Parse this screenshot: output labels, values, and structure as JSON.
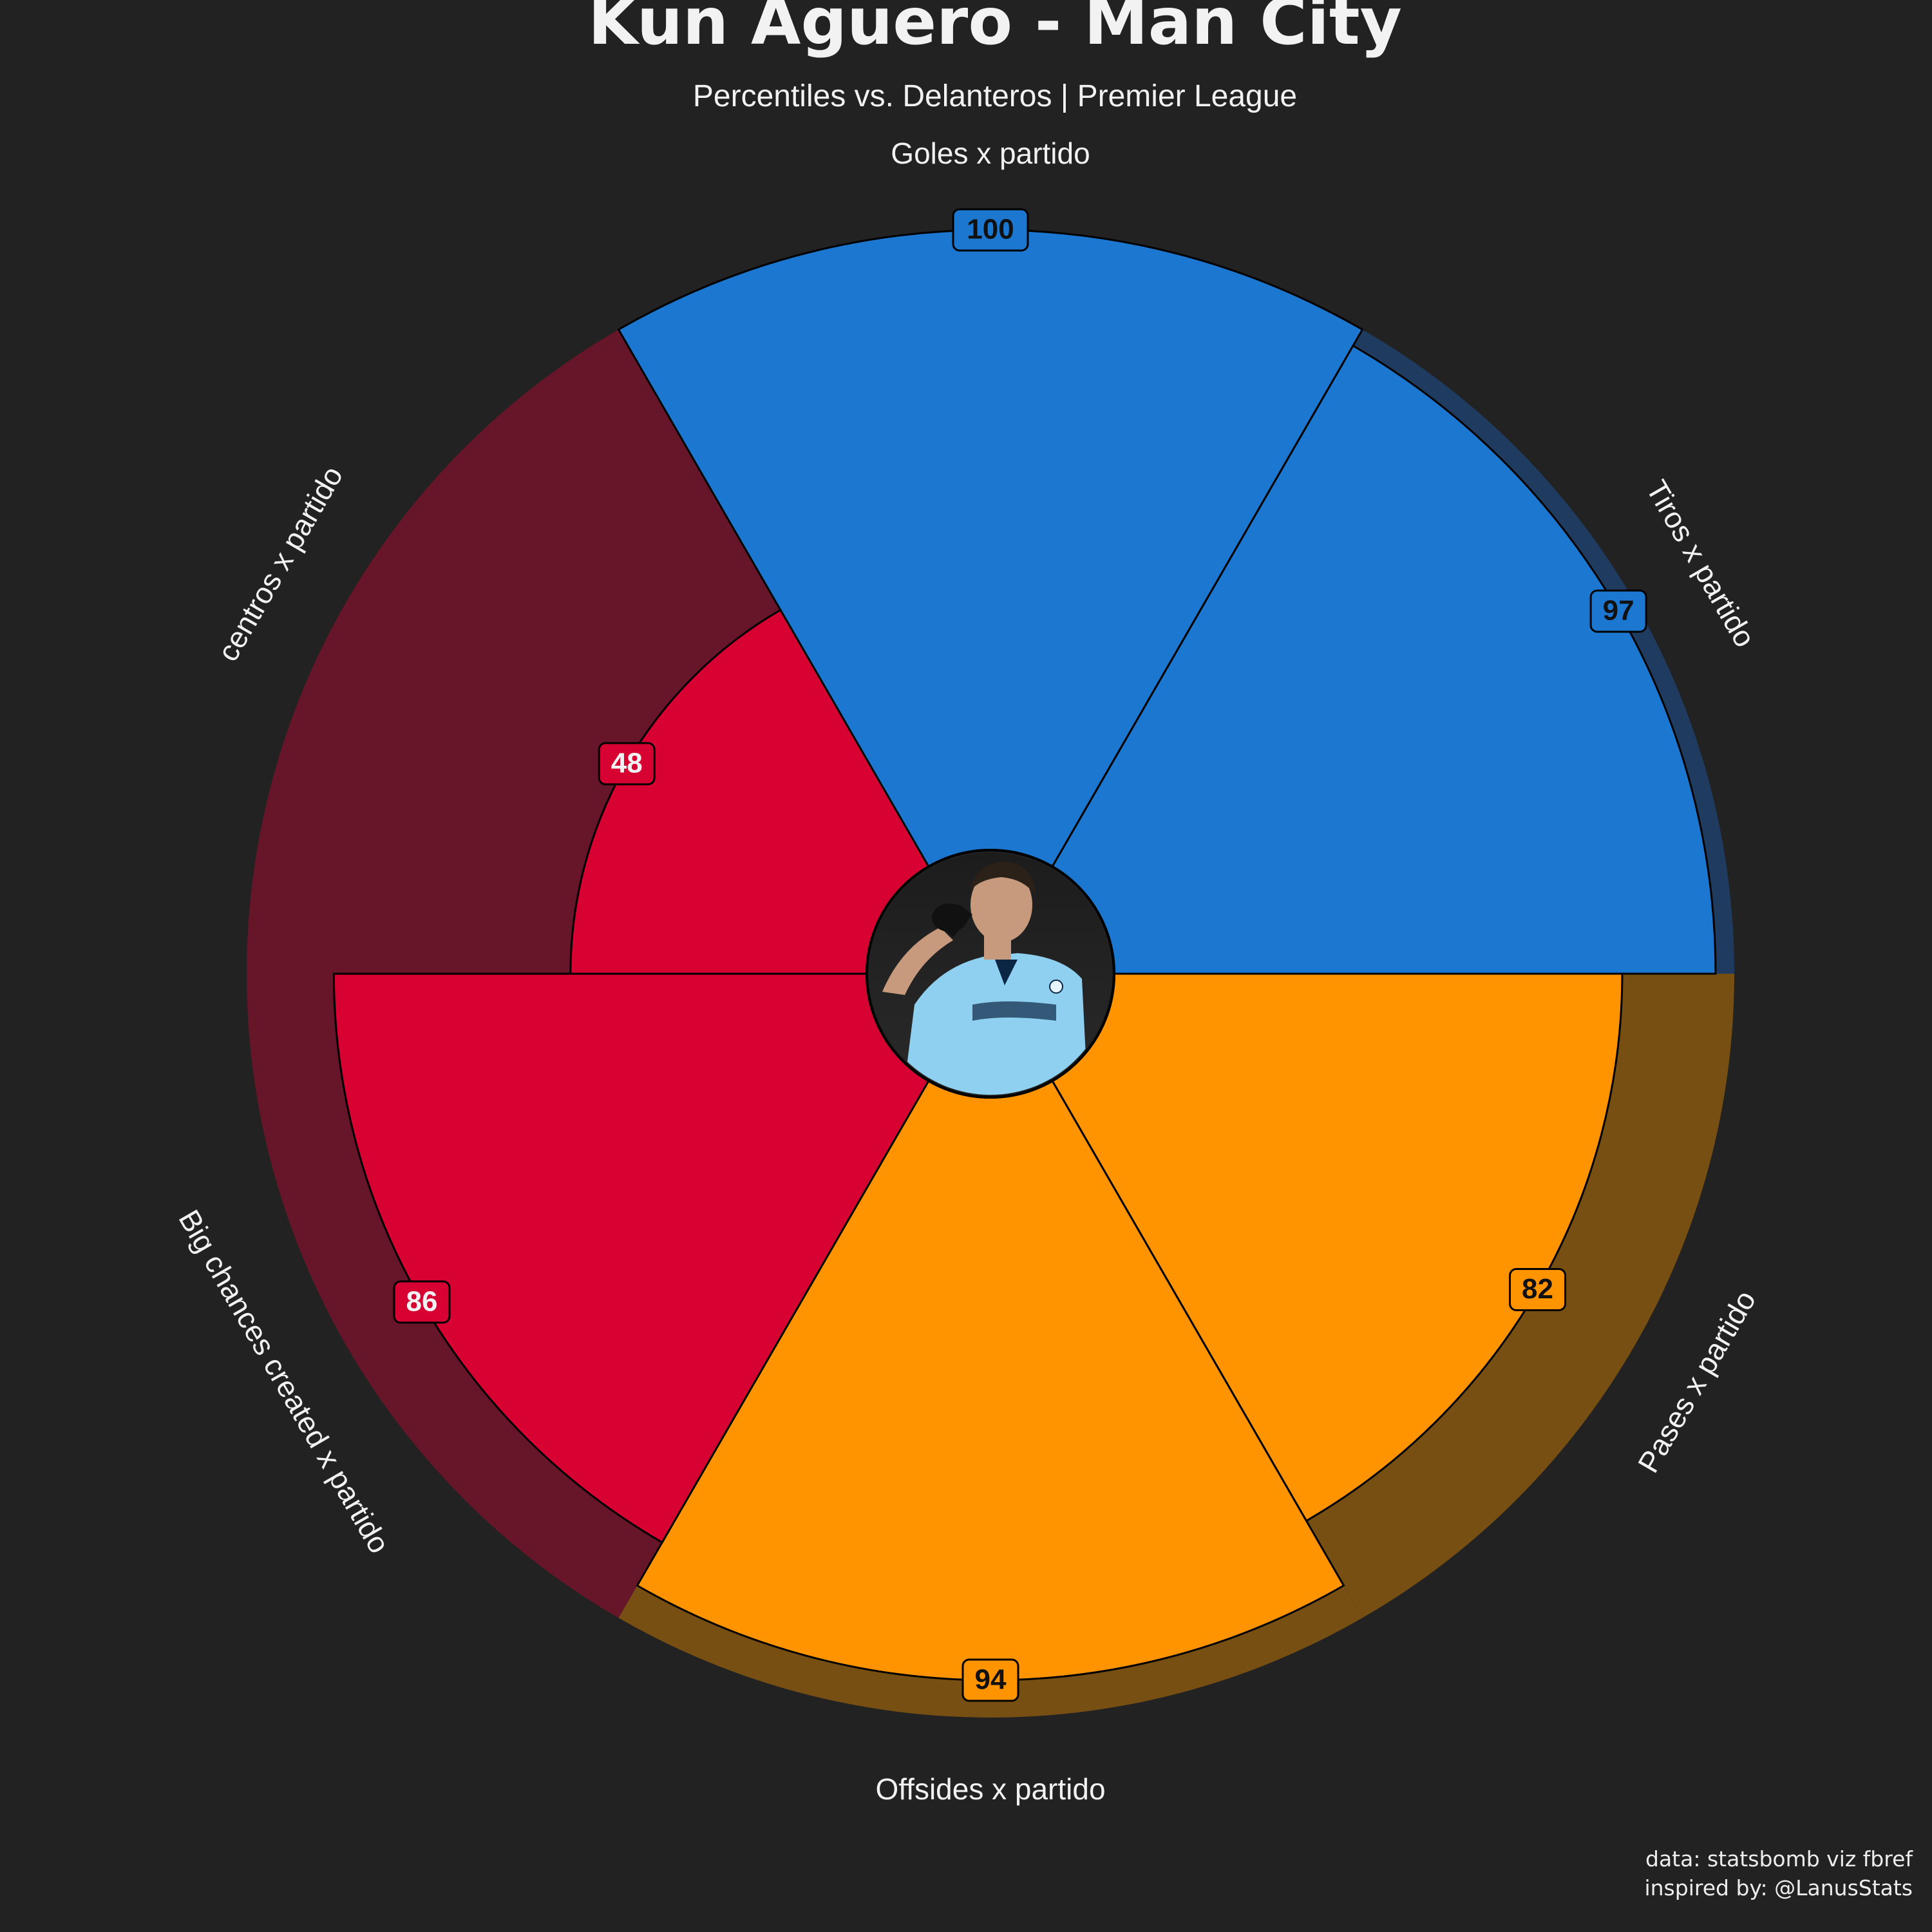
{
  "header": {
    "title": "Kun Aguero - Man City",
    "subtitle": "Percentiles vs. Delanteros | Premier League"
  },
  "footer": {
    "line1": "data: statsbomb viz fbref",
    "line2": "inspired by: @LanusStats"
  },
  "colors": {
    "background": "#222222",
    "attack": "#1B77D0",
    "attack_bg": "#1F3C60",
    "possession": "#FF9300",
    "possession_bg": "#774F13",
    "creation": "#D70232",
    "creation_bg": "#661628",
    "label_light": "#F2F2F2",
    "label_dark": "#111111"
  },
  "photo": {
    "icon": "player-photo",
    "alt": "player celebrating in sky-blue kit"
  },
  "chart_data": {
    "type": "polar-bar",
    "title": "Kun Aguero - Man City",
    "subtitle": "Percentiles vs. Delanteros | Premier League",
    "rlim": [
      0,
      100
    ],
    "categories": [
      "Goles x partido",
      "Tiros x partido",
      "Pases x partido",
      "Offsides x partido",
      "Big chances created x partido",
      "centros x partido"
    ],
    "values": [
      100,
      97,
      82,
      94,
      86,
      48
    ],
    "groups": [
      "attack",
      "attack",
      "possession",
      "possession",
      "creation",
      "creation"
    ],
    "items": [
      {
        "label": "Goles x partido",
        "value": 100,
        "value_text": "100",
        "group": "attack"
      },
      {
        "label": "Tiros x partido",
        "value": 97,
        "value_text": "97",
        "group": "attack"
      },
      {
        "label": "Pases x partido",
        "value": 82,
        "value_text": "82",
        "group": "possession"
      },
      {
        "label": "Offsides x partido",
        "value": 94,
        "value_text": "94",
        "group": "possession"
      },
      {
        "label": "Big chances created x partido",
        "value": 86,
        "value_text": "86",
        "group": "creation"
      },
      {
        "label": "centros x partido",
        "value": 48,
        "value_text": "48",
        "group": "creation"
      }
    ]
  }
}
